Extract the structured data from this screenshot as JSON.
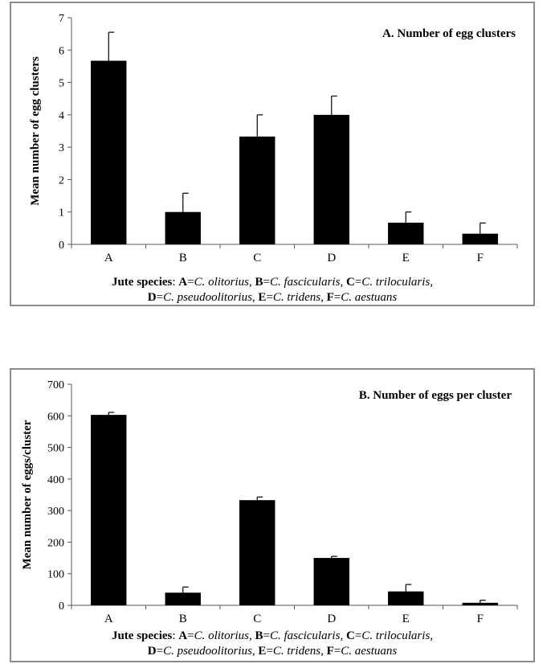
{
  "chart_data": [
    {
      "type": "bar",
      "title": "A. Number of egg clusters",
      "ylabel": "Mean number of egg clusters",
      "xlabel": "",
      "ylim": [
        0,
        7
      ],
      "yticks": [
        0,
        1,
        2,
        3,
        4,
        5,
        6,
        7
      ],
      "categories": [
        "A",
        "B",
        "C",
        "D",
        "E",
        "F"
      ],
      "values": [
        5.67,
        1.0,
        3.33,
        4.0,
        0.67,
        0.33
      ],
      "errors": [
        0.88,
        0.58,
        0.67,
        0.58,
        0.33,
        0.33
      ],
      "bar_color": "#000000",
      "grid": false,
      "legend": "none"
    },
    {
      "type": "bar",
      "title": "B. Number of eggs per cluster",
      "ylabel": "Mean number of eggs/cluster",
      "xlabel": "",
      "ylim": [
        0,
        700
      ],
      "yticks": [
        0,
        100,
        200,
        300,
        400,
        500,
        600,
        700
      ],
      "categories": [
        "A",
        "B",
        "C",
        "D",
        "E",
        "F"
      ],
      "values": [
        603,
        40,
        333,
        150,
        44,
        8
      ],
      "errors": [
        8,
        18,
        10,
        5,
        22,
        8
      ],
      "bar_color": "#000000",
      "grid": false,
      "legend": "none"
    }
  ],
  "caption": {
    "lead": "Jute species",
    "line1": [
      {
        "key": "A",
        "name": "C. olitorius"
      },
      {
        "key": "B",
        "name": "C. fascicularis"
      },
      {
        "key": "C",
        "name": "C. trilocularis"
      }
    ],
    "line2": [
      {
        "key": "D",
        "name": "C. pseudoolitorius"
      },
      {
        "key": "E",
        "name": "C. tridens"
      },
      {
        "key": "F",
        "name": "C. aestuans"
      }
    ]
  }
}
